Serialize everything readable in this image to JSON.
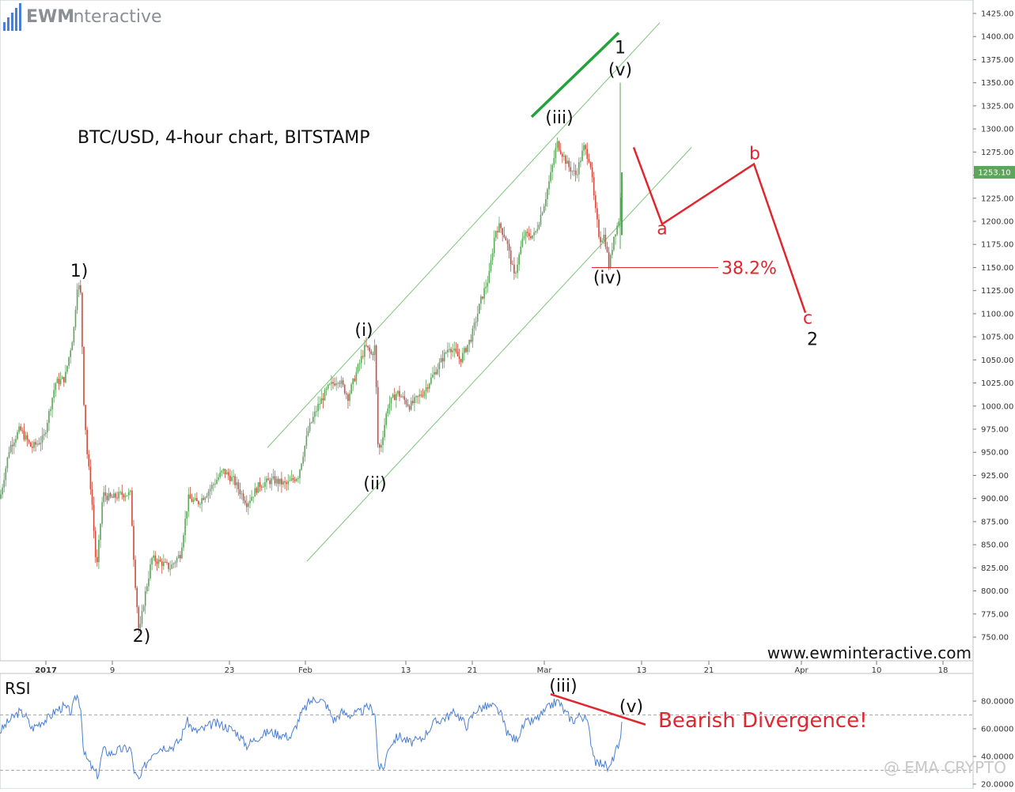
{
  "header": {
    "logo_text_bold": "EWM",
    "logo_text_light": "Interactive",
    "chart_title": "BTC/USD, 4-hour chart, BITSTAMP",
    "website": "www.ewminteractive.com",
    "watermark": "@ EMA CRYPTO"
  },
  "colors": {
    "candle_up": "#5aa65a",
    "candle_down": "#cc4b3c",
    "channel": "#7cc47c",
    "projection": "#e0262e",
    "rsi_line": "#4a7fd4",
    "green_trend": "#22a33a",
    "price_tag": "#5aa65a"
  },
  "chart_data": [
    {
      "type": "candlestick",
      "title": "BTC/USD, 4-hour chart, BITSTAMP",
      "ylim": [
        735,
        1435
      ],
      "y_ticks": [
        "1425.00",
        "1400.00",
        "1375.00",
        "1350.00",
        "1325.00",
        "1300.00",
        "1275.00",
        "1250.00",
        "1225.00",
        "1200.00",
        "1175.00",
        "1150.00",
        "1125.00",
        "1100.00",
        "1075.00",
        "1050.00",
        "1025.00",
        "1000.00",
        "975.00",
        "950.00",
        "925.00",
        "900.00",
        "875.00",
        "850.00",
        "825.00",
        "800.00",
        "775.00",
        "750.00"
      ],
      "x_ticks": [
        "2017",
        "9",
        "23",
        "Feb",
        "13",
        "21",
        "Mar",
        "13",
        "21",
        "Apr",
        "10",
        "18"
      ],
      "last_price": "1253.10",
      "price_path": [
        {
          "x": 0,
          "y": 900
        },
        {
          "x": 12,
          "y": 955
        },
        {
          "x": 25,
          "y": 975
        },
        {
          "x": 40,
          "y": 955
        },
        {
          "x": 55,
          "y": 965
        },
        {
          "x": 70,
          "y": 1025
        },
        {
          "x": 82,
          "y": 1030
        },
        {
          "x": 93,
          "y": 1080
        },
        {
          "x": 98,
          "y": 1135
        },
        {
          "x": 102,
          "y": 1120
        },
        {
          "x": 106,
          "y": 1005
        },
        {
          "x": 110,
          "y": 950
        },
        {
          "x": 116,
          "y": 900
        },
        {
          "x": 122,
          "y": 820
        },
        {
          "x": 130,
          "y": 905
        },
        {
          "x": 140,
          "y": 900
        },
        {
          "x": 155,
          "y": 905
        },
        {
          "x": 165,
          "y": 905
        },
        {
          "x": 170,
          "y": 820
        },
        {
          "x": 176,
          "y": 752
        },
        {
          "x": 182,
          "y": 790
        },
        {
          "x": 192,
          "y": 835
        },
        {
          "x": 205,
          "y": 830
        },
        {
          "x": 215,
          "y": 825
        },
        {
          "x": 228,
          "y": 840
        },
        {
          "x": 238,
          "y": 900
        },
        {
          "x": 250,
          "y": 895
        },
        {
          "x": 265,
          "y": 910
        },
        {
          "x": 282,
          "y": 930
        },
        {
          "x": 295,
          "y": 920
        },
        {
          "x": 312,
          "y": 895
        },
        {
          "x": 328,
          "y": 915
        },
        {
          "x": 345,
          "y": 920
        },
        {
          "x": 362,
          "y": 915
        },
        {
          "x": 377,
          "y": 925
        },
        {
          "x": 390,
          "y": 975
        },
        {
          "x": 402,
          "y": 1000
        },
        {
          "x": 415,
          "y": 1020
        },
        {
          "x": 428,
          "y": 1030
        },
        {
          "x": 440,
          "y": 1010
        },
        {
          "x": 452,
          "y": 1040
        },
        {
          "x": 462,
          "y": 1065
        },
        {
          "x": 470,
          "y": 1055
        },
        {
          "x": 474,
          "y": 1065
        },
        {
          "x": 478,
          "y": 950
        },
        {
          "x": 482,
          "y": 960
        },
        {
          "x": 490,
          "y": 1000
        },
        {
          "x": 502,
          "y": 1015
        },
        {
          "x": 518,
          "y": 1000
        },
        {
          "x": 535,
          "y": 1015
        },
        {
          "x": 552,
          "y": 1040
        },
        {
          "x": 568,
          "y": 1065
        },
        {
          "x": 582,
          "y": 1050
        },
        {
          "x": 596,
          "y": 1075
        },
        {
          "x": 608,
          "y": 1115
        },
        {
          "x": 618,
          "y": 1140
        },
        {
          "x": 626,
          "y": 1190
        },
        {
          "x": 632,
          "y": 1195
        },
        {
          "x": 640,
          "y": 1180
        },
        {
          "x": 650,
          "y": 1140
        },
        {
          "x": 662,
          "y": 1185
        },
        {
          "x": 676,
          "y": 1185
        },
        {
          "x": 688,
          "y": 1220
        },
        {
          "x": 696,
          "y": 1250
        },
        {
          "x": 704,
          "y": 1285
        },
        {
          "x": 710,
          "y": 1275
        },
        {
          "x": 718,
          "y": 1260
        },
        {
          "x": 728,
          "y": 1250
        },
        {
          "x": 738,
          "y": 1280
        },
        {
          "x": 746,
          "y": 1265
        },
        {
          "x": 752,
          "y": 1215
        },
        {
          "x": 758,
          "y": 1180
        },
        {
          "x": 764,
          "y": 1185
        },
        {
          "x": 770,
          "y": 1150
        },
        {
          "x": 776,
          "y": 1185
        },
        {
          "x": 782,
          "y": 1200
        },
        {
          "x": 787,
          "y": 1253
        }
      ],
      "channel_lines": [
        {
          "from": {
            "x": 338,
            "y": 955
          },
          "to": {
            "x": 834,
            "y": 1415
          }
        },
        {
          "from": {
            "x": 388,
            "y": 832
          },
          "to": {
            "x": 874,
            "y": 1280
          }
        }
      ],
      "green_trend_line": {
        "from": {
          "x": 672,
          "y": 1313
        },
        "to": {
          "x": 782,
          "y": 1404
        }
      },
      "fib_level": {
        "label": "38.2%",
        "y": 1150,
        "x_start": 748,
        "x_end": 908
      },
      "projection_path": [
        {
          "x": 801,
          "y": 1280
        },
        {
          "x": 837,
          "y": 1197
        },
        {
          "x": 953,
          "y": 1262
        },
        {
          "x": 1018,
          "y": 1101
        }
      ],
      "wave_labels": [
        {
          "text": "1)",
          "x": 100,
          "y": 1140
        },
        {
          "text": "2)",
          "x": 179,
          "y": 745
        },
        {
          "text": "(i)",
          "x": 460,
          "y": 1076
        },
        {
          "text": "(ii)",
          "x": 474,
          "y": 910
        },
        {
          "text": "(iii)",
          "x": 707,
          "y": 1306
        },
        {
          "text": "(iv)",
          "x": 768,
          "y": 1133
        },
        {
          "text": "(v)",
          "x": 784,
          "y": 1358
        },
        {
          "text": "1",
          "x": 784,
          "y": 1382
        }
      ],
      "projection_labels": [
        {
          "text": "a",
          "x": 837,
          "y": 1186
        },
        {
          "text": "b",
          "x": 954,
          "y": 1267
        },
        {
          "text": "c",
          "x": 1021,
          "y": 1089
        }
      ],
      "projection_target_label": {
        "text": "2",
        "x": 1027,
        "y": 1066
      }
    },
    {
      "type": "line",
      "title": "RSI",
      "ylim": [
        15,
        90
      ],
      "y_ticks": [
        "80.0000",
        "60.0000",
        "40.0000",
        "20.0000"
      ],
      "reference_lines": [
        70,
        30
      ],
      "values_path": [
        {
          "x": 0,
          "y": 58
        },
        {
          "x": 12,
          "y": 66
        },
        {
          "x": 24,
          "y": 72
        },
        {
          "x": 32,
          "y": 70
        },
        {
          "x": 40,
          "y": 60
        },
        {
          "x": 52,
          "y": 65
        },
        {
          "x": 62,
          "y": 68
        },
        {
          "x": 70,
          "y": 73
        },
        {
          "x": 80,
          "y": 76
        },
        {
          "x": 90,
          "y": 72
        },
        {
          "x": 97,
          "y": 85
        },
        {
          "x": 102,
          "y": 76
        },
        {
          "x": 106,
          "y": 42
        },
        {
          "x": 112,
          "y": 36
        },
        {
          "x": 118,
          "y": 30
        },
        {
          "x": 124,
          "y": 26
        },
        {
          "x": 130,
          "y": 45
        },
        {
          "x": 140,
          "y": 42
        },
        {
          "x": 152,
          "y": 45
        },
        {
          "x": 165,
          "y": 46
        },
        {
          "x": 170,
          "y": 28
        },
        {
          "x": 176,
          "y": 22
        },
        {
          "x": 182,
          "y": 32
        },
        {
          "x": 194,
          "y": 44
        },
        {
          "x": 206,
          "y": 47
        },
        {
          "x": 218,
          "y": 47
        },
        {
          "x": 228,
          "y": 52
        },
        {
          "x": 236,
          "y": 66
        },
        {
          "x": 246,
          "y": 58
        },
        {
          "x": 258,
          "y": 60
        },
        {
          "x": 270,
          "y": 64
        },
        {
          "x": 284,
          "y": 62
        },
        {
          "x": 298,
          "y": 58
        },
        {
          "x": 312,
          "y": 48
        },
        {
          "x": 326,
          "y": 54
        },
        {
          "x": 340,
          "y": 58
        },
        {
          "x": 354,
          "y": 56
        },
        {
          "x": 368,
          "y": 54
        },
        {
          "x": 380,
          "y": 70
        },
        {
          "x": 392,
          "y": 80
        },
        {
          "x": 402,
          "y": 82
        },
        {
          "x": 412,
          "y": 78
        },
        {
          "x": 422,
          "y": 66
        },
        {
          "x": 432,
          "y": 72
        },
        {
          "x": 444,
          "y": 70
        },
        {
          "x": 456,
          "y": 72
        },
        {
          "x": 466,
          "y": 76
        },
        {
          "x": 474,
          "y": 72
        },
        {
          "x": 478,
          "y": 34
        },
        {
          "x": 484,
          "y": 30
        },
        {
          "x": 492,
          "y": 48
        },
        {
          "x": 504,
          "y": 55
        },
        {
          "x": 518,
          "y": 50
        },
        {
          "x": 532,
          "y": 52
        },
        {
          "x": 548,
          "y": 64
        },
        {
          "x": 562,
          "y": 68
        },
        {
          "x": 576,
          "y": 72
        },
        {
          "x": 590,
          "y": 62
        },
        {
          "x": 602,
          "y": 74
        },
        {
          "x": 614,
          "y": 76
        },
        {
          "x": 624,
          "y": 76
        },
        {
          "x": 632,
          "y": 72
        },
        {
          "x": 642,
          "y": 56
        },
        {
          "x": 652,
          "y": 52
        },
        {
          "x": 664,
          "y": 64
        },
        {
          "x": 676,
          "y": 66
        },
        {
          "x": 688,
          "y": 72
        },
        {
          "x": 698,
          "y": 78
        },
        {
          "x": 706,
          "y": 80
        },
        {
          "x": 714,
          "y": 72
        },
        {
          "x": 724,
          "y": 66
        },
        {
          "x": 734,
          "y": 70
        },
        {
          "x": 742,
          "y": 66
        },
        {
          "x": 748,
          "y": 48
        },
        {
          "x": 754,
          "y": 34
        },
        {
          "x": 762,
          "y": 36
        },
        {
          "x": 770,
          "y": 30
        },
        {
          "x": 778,
          "y": 44
        },
        {
          "x": 784,
          "y": 48
        },
        {
          "x": 787,
          "y": 70
        }
      ],
      "divergence_line": {
        "from": {
          "x": 696,
          "y": 85
        },
        "to": {
          "x": 816,
          "y": 63
        }
      },
      "wave_labels": [
        {
          "text": "(iii)",
          "x": 712,
          "y": 87
        },
        {
          "text": "(v)",
          "x": 798,
          "y": 72
        }
      ],
      "annotation": "Bearish Divergence!"
    }
  ]
}
